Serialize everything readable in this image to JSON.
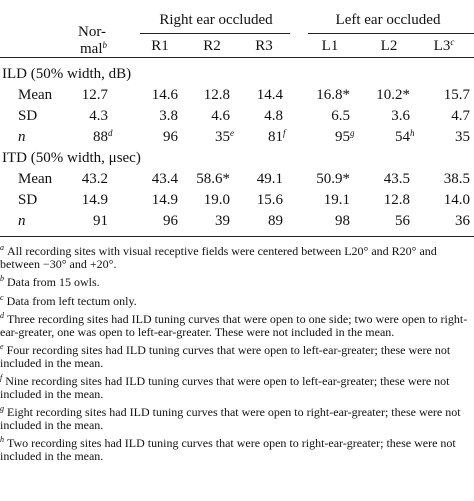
{
  "table": {
    "header": {
      "normal": {
        "lines": [
          "Nor-",
          "mal"
        ],
        "sup": "b"
      },
      "groups": [
        "Right ear occluded",
        "Left ear occluded"
      ],
      "columns": [
        {
          "text": "R1"
        },
        {
          "text": "R2"
        },
        {
          "text": "R3"
        },
        {
          "text": "L1"
        },
        {
          "text": "L2"
        },
        {
          "text": "L3",
          "sup": "c"
        }
      ]
    },
    "sections": [
      {
        "title": "ILD (50% width, dB)",
        "rows": [
          {
            "label": "Mean",
            "cells": [
              {
                "text": "12.7"
              },
              {
                "text": "14.6"
              },
              {
                "text": "12.8"
              },
              {
                "text": "14.4"
              },
              {
                "text": "16.8*"
              },
              {
                "text": "10.2*"
              },
              {
                "text": "15.7"
              }
            ]
          },
          {
            "label": "SD",
            "cells": [
              {
                "text": "4.3"
              },
              {
                "text": "3.8"
              },
              {
                "text": "4.6"
              },
              {
                "text": "4.8"
              },
              {
                "text": "6.5"
              },
              {
                "text": "3.6"
              },
              {
                "text": "4.7"
              }
            ]
          },
          {
            "label": "n",
            "cells": [
              {
                "text": "88",
                "sup": "d"
              },
              {
                "text": "96"
              },
              {
                "text": "35",
                "sup": "e"
              },
              {
                "text": "81",
                "sup": "f"
              },
              {
                "text": "95",
                "sup": "g"
              },
              {
                "text": "54",
                "sup": "h"
              },
              {
                "text": "35"
              }
            ]
          }
        ]
      },
      {
        "title": "ITD (50% width, μsec)",
        "rows": [
          {
            "label": "Mean",
            "cells": [
              {
                "text": "43.2"
              },
              {
                "text": "43.4"
              },
              {
                "text": "58.6*"
              },
              {
                "text": "49.1"
              },
              {
                "text": "50.9*"
              },
              {
                "text": "43.5"
              },
              {
                "text": "38.5"
              }
            ]
          },
          {
            "label": "SD",
            "cells": [
              {
                "text": "14.9"
              },
              {
                "text": "14.9"
              },
              {
                "text": "19.0"
              },
              {
                "text": "15.6"
              },
              {
                "text": "19.1"
              },
              {
                "text": "12.8"
              },
              {
                "text": "14.0"
              }
            ]
          },
          {
            "label": "n",
            "cells": [
              {
                "text": "91"
              },
              {
                "text": "96"
              },
              {
                "text": "39"
              },
              {
                "text": "89"
              },
              {
                "text": "98"
              },
              {
                "text": "56"
              },
              {
                "text": "36"
              }
            ]
          }
        ]
      }
    ]
  },
  "footnotes": [
    {
      "mark": "a",
      "text": "All recording sites with visual receptive fields were centered between L20° and R20° and between −30° and +20°."
    },
    {
      "mark": "b",
      "text": "Data from 15 owls."
    },
    {
      "mark": "c",
      "text": "Data from left tectum only."
    },
    {
      "mark": "d",
      "text": "Three recording sites had ILD tuning curves that were open to one side; two were open to right-ear-greater, one was open to left-ear-greater. These were not included in the mean."
    },
    {
      "mark": "e",
      "text": "Four recording sites had ILD tuning curves that were open to left-ear-greater; these were not included in the mean."
    },
    {
      "mark": "f",
      "text": "Nine recording sites had ILD tuning curves that were open to left-ear-greater; these were not included in the mean."
    },
    {
      "mark": "g",
      "text": "Eight recording sites had ILD tuning curves that were open to right-ear-greater; these were not included in the mean."
    },
    {
      "mark": "h",
      "text": "Two recording sites had ILD tuning curves that were open to right-ear-greater; these were not included in the mean."
    }
  ]
}
